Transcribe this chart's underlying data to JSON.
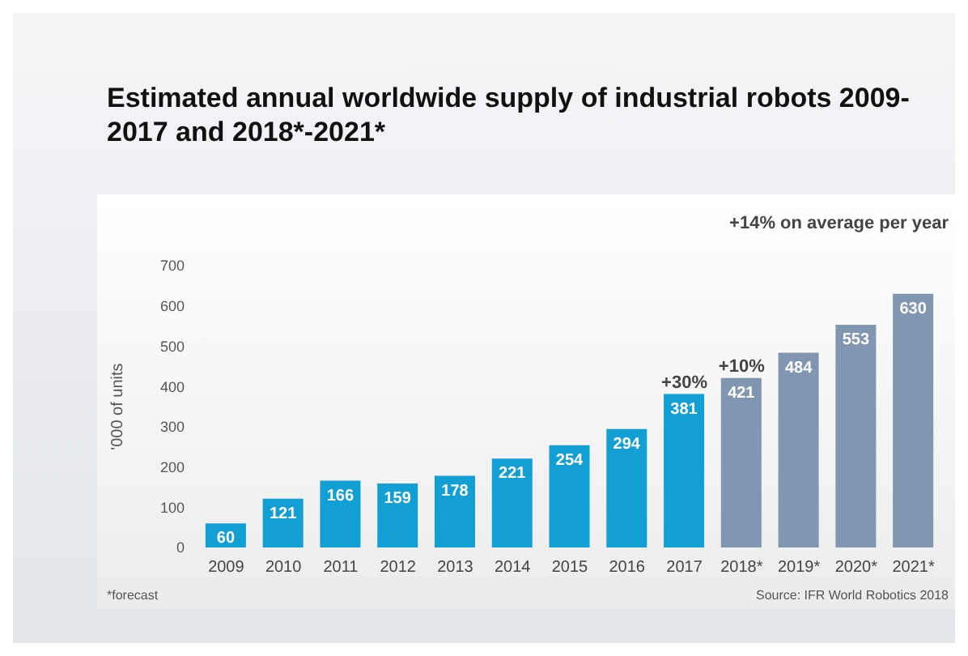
{
  "chart_data": {
    "type": "bar",
    "title": "Estimated annual worldwide supply of industrial robots 2009-2017 and 2018*-2021*",
    "categories": [
      "2009",
      "2010",
      "2011",
      "2012",
      "2013",
      "2014",
      "2015",
      "2016",
      "2017",
      "2018*",
      "2019*",
      "2020*",
      "2021*"
    ],
    "values": [
      60,
      121,
      166,
      159,
      178,
      221,
      254,
      294,
      381,
      421,
      484,
      553,
      630
    ],
    "colors": [
      "#119fd4",
      "#119fd4",
      "#119fd4",
      "#119fd4",
      "#119fd4",
      "#119fd4",
      "#119fd4",
      "#119fd4",
      "#119fd4",
      "#8196b0",
      "#8196b0",
      "#8196b0",
      "#8196b0"
    ],
    "ylabel": "'000 of units",
    "ylim": [
      0,
      700
    ],
    "yticks": [
      0,
      100,
      200,
      300,
      400,
      500,
      600,
      700
    ],
    "data_labels": true,
    "annotations": [
      {
        "text": "+30%",
        "x": "2017",
        "y": 381
      },
      {
        "text": "+10%",
        "x": "2018*",
        "y": 421
      },
      "+14% on average per year",
      "*forecast",
      "Source: IFR World Robotics 2018"
    ]
  }
}
